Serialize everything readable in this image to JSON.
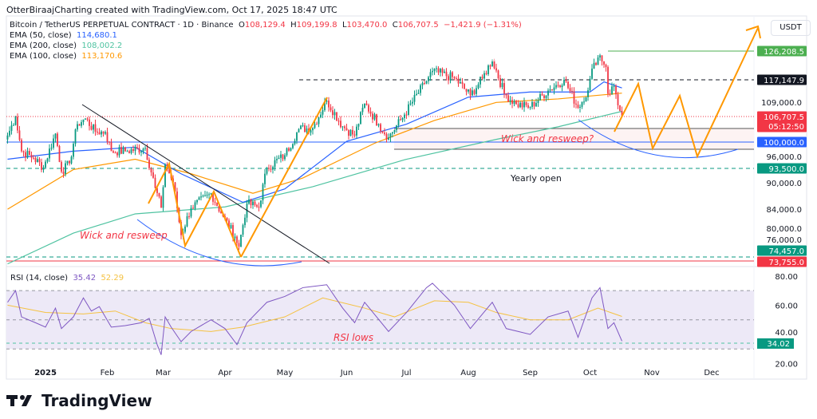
{
  "credit": "OtterBiraajCharting created with TradingView.com, Oct 17, 2025 18:47 UTC",
  "header": {
    "symbol": "Bitcoin / TetherUS PERPETUAL CONTRACT · 1D · Binance",
    "o_label": "O",
    "o": "108,129.4",
    "h_label": "H",
    "h": "109,199.8",
    "l_label": "L",
    "l": "103,470.0",
    "c_label": "C",
    "c": "106,707.5",
    "change": "−1,421.9 (−1.31%)"
  },
  "indicators": [
    {
      "label": "EMA (50, close)",
      "value": "114,680.1",
      "color": "#2962ff"
    },
    {
      "label": "EMA (200, close)",
      "value": "108,002.2",
      "color": "#4fc3a1"
    },
    {
      "label": "EMA (100, close)",
      "value": "113,170.6",
      "color": "#ff9800"
    }
  ],
  "rsi_legend": {
    "label": "RSI (14, close)",
    "value": "35.42",
    "ma": "52.29"
  },
  "currency": "USDT",
  "annotations": {
    "wick_left": "Wick and resweep",
    "wick_right": "Wick and resweep?",
    "yearly_open": "Yearly open",
    "rsi_lows": "RSI lows"
  },
  "brand": "TradingView",
  "chart_data": [
    {
      "type": "candlestick",
      "scale": "log",
      "ylim": [
        72000,
        135000
      ],
      "x_ticks": [
        "2025",
        "Feb",
        "Mar",
        "Apr",
        "May",
        "Jun",
        "Jul",
        "Aug",
        "Sep",
        "Oct",
        "Nov",
        "Dec"
      ],
      "y_ticks": [
        "109,000.0",
        "96,000.0",
        "90,000.0",
        "84,000.0",
        "80,000.0",
        "76,000.0"
      ],
      "price_labels": [
        {
          "value": "126,208.5",
          "color": "#4caf50"
        },
        {
          "value": "117,147.9",
          "color": "#131722"
        },
        {
          "value": "106,707.5",
          "sub": "05:12:50",
          "color": "#f23645"
        },
        {
          "value": "100,000.0",
          "color": "#2962ff"
        },
        {
          "value": "93,500.0",
          "color": "#089981"
        },
        {
          "value": "74,457.0",
          "color": "#089981"
        },
        {
          "value": "73,755.0",
          "color": "#f23645"
        }
      ],
      "colors": {
        "up": "#089981",
        "down": "#f23645"
      },
      "close": [
        [
          "2024-12-13",
          101500
        ],
        [
          "2024-12-17",
          106500
        ],
        [
          "2024-12-20",
          97500
        ],
        [
          "2024-12-26",
          95800
        ],
        [
          "2024-12-31",
          93500
        ],
        [
          "2025-01-06",
          102000
        ],
        [
          "2025-01-09",
          92500
        ],
        [
          "2025-01-13",
          94500
        ],
        [
          "2025-01-17",
          104500
        ],
        [
          "2025-01-21",
          106000
        ],
        [
          "2025-01-26",
          102500
        ],
        [
          "2025-01-31",
          102400
        ],
        [
          "2025-02-03",
          97500
        ],
        [
          "2025-02-10",
          97500
        ],
        [
          "2025-02-20",
          98300
        ],
        [
          "2025-02-25",
          88700
        ],
        [
          "2025-02-28",
          84300
        ],
        [
          "2025-03-02",
          94200
        ],
        [
          "2025-03-06",
          90000
        ],
        [
          "2025-03-10",
          78600
        ],
        [
          "2025-03-15",
          84300
        ],
        [
          "2025-03-25",
          87500
        ],
        [
          "2025-03-31",
          82500
        ],
        [
          "2025-04-06",
          78300
        ],
        [
          "2025-04-08",
          76300
        ],
        [
          "2025-04-12",
          85200
        ],
        [
          "2025-04-18",
          84500
        ],
        [
          "2025-04-22",
          93400
        ],
        [
          "2025-05-01",
          96500
        ],
        [
          "2025-05-08",
          103200
        ],
        [
          "2025-05-15",
          103500
        ],
        [
          "2025-05-22",
          111000
        ],
        [
          "2025-05-30",
          103900
        ],
        [
          "2025-06-05",
          101500
        ],
        [
          "2025-06-10",
          110200
        ],
        [
          "2025-06-17",
          104500
        ],
        [
          "2025-06-22",
          101000
        ],
        [
          "2025-06-30",
          107100
        ],
        [
          "2025-07-10",
          116000
        ],
        [
          "2025-07-14",
          119800
        ],
        [
          "2025-07-25",
          117600
        ],
        [
          "2025-08-02",
          112500
        ],
        [
          "2025-08-08",
          117500
        ],
        [
          "2025-08-13",
          123300
        ],
        [
          "2025-08-19",
          113000
        ],
        [
          "2025-08-25",
          110000
        ],
        [
          "2025-09-01",
          109200
        ],
        [
          "2025-09-10",
          113900
        ],
        [
          "2025-09-18",
          117100
        ],
        [
          "2025-09-25",
          109000
        ],
        [
          "2025-09-30",
          114000
        ],
        [
          "2025-10-03",
          122300
        ],
        [
          "2025-10-06",
          124700
        ],
        [
          "2025-10-09",
          121000
        ],
        [
          "2025-10-10",
          113000
        ],
        [
          "2025-10-13",
          115200
        ],
        [
          "2025-10-16",
          108100
        ],
        [
          "2025-10-17",
          106707.5
        ]
      ],
      "ema50": [
        [
          "2024-12-13",
          95500
        ],
        [
          "2025-01-15",
          97500
        ],
        [
          "2025-02-15",
          98500
        ],
        [
          "2025-03-10",
          92000
        ],
        [
          "2025-04-10",
          85500
        ],
        [
          "2025-05-01",
          88500
        ],
        [
          "2025-06-01",
          100000
        ],
        [
          "2025-07-01",
          104500
        ],
        [
          "2025-08-01",
          112000
        ],
        [
          "2025-09-01",
          113500
        ],
        [
          "2025-10-01",
          113500
        ],
        [
          "2025-10-08",
          116500
        ],
        [
          "2025-10-17",
          114680
        ]
      ],
      "ema100": [
        [
          "2024-12-13",
          84000
        ],
        [
          "2025-01-15",
          93000
        ],
        [
          "2025-02-15",
          95500
        ],
        [
          "2025-03-15",
          92000
        ],
        [
          "2025-04-15",
          87500
        ],
        [
          "2025-05-10",
          91000
        ],
        [
          "2025-06-15",
          99500
        ],
        [
          "2025-07-15",
          105500
        ],
        [
          "2025-08-15",
          110500
        ],
        [
          "2025-09-15",
          111500
        ],
        [
          "2025-10-17",
          113170
        ]
      ],
      "ema200": [
        [
          "2024-12-13",
          73000
        ],
        [
          "2025-01-15",
          79000
        ],
        [
          "2025-02-15",
          83000
        ],
        [
          "2025-04-01",
          84500
        ],
        [
          "2025-05-15",
          89000
        ],
        [
          "2025-07-01",
          95500
        ],
        [
          "2025-08-15",
          100500
        ],
        [
          "2025-09-15",
          103800
        ],
        [
          "2025-10-17",
          108002
        ]
      ]
    },
    {
      "type": "line",
      "title": "RSI (14, close)",
      "ylim": [
        15,
        82
      ],
      "y_ticks": [
        "80.00",
        "60.00",
        "40.00",
        "20.00"
      ],
      "bands": [
        70,
        50,
        30
      ],
      "level_label": "34.02",
      "rsi": [
        [
          "2024-12-13",
          62
        ],
        [
          "2024-12-17",
          70
        ],
        [
          "2024-12-20",
          52
        ],
        [
          "2024-12-27",
          48
        ],
        [
          "2025-01-01",
          45
        ],
        [
          "2025-01-06",
          58
        ],
        [
          "2025-01-09",
          44
        ],
        [
          "2025-01-15",
          52
        ],
        [
          "2025-01-20",
          65
        ],
        [
          "2025-01-24",
          56
        ],
        [
          "2025-01-28",
          59
        ],
        [
          "2025-02-03",
          45
        ],
        [
          "2025-02-10",
          46
        ],
        [
          "2025-02-18",
          48
        ],
        [
          "2025-02-22",
          51
        ],
        [
          "2025-02-26",
          33
        ],
        [
          "2025-02-28",
          26
        ],
        [
          "2025-03-02",
          52
        ],
        [
          "2025-03-05",
          45
        ],
        [
          "2025-03-10",
          35
        ],
        [
          "2025-03-15",
          42
        ],
        [
          "2025-03-25",
          50
        ],
        [
          "2025-04-01",
          44
        ],
        [
          "2025-04-07",
          33
        ],
        [
          "2025-04-12",
          48
        ],
        [
          "2025-04-22",
          62
        ],
        [
          "2025-05-01",
          66
        ],
        [
          "2025-05-10",
          72
        ],
        [
          "2025-05-22",
          74
        ],
        [
          "2025-05-30",
          58
        ],
        [
          "2025-06-05",
          48
        ],
        [
          "2025-06-10",
          62
        ],
        [
          "2025-06-22",
          42
        ],
        [
          "2025-07-01",
          55
        ],
        [
          "2025-07-11",
          72
        ],
        [
          "2025-07-14",
          75
        ],
        [
          "2025-07-25",
          60
        ],
        [
          "2025-08-02",
          44
        ],
        [
          "2025-08-13",
          62
        ],
        [
          "2025-08-20",
          44
        ],
        [
          "2025-09-01",
          40
        ],
        [
          "2025-09-10",
          52
        ],
        [
          "2025-09-20",
          56
        ],
        [
          "2025-09-25",
          38
        ],
        [
          "2025-10-02",
          65
        ],
        [
          "2025-10-06",
          72
        ],
        [
          "2025-10-10",
          44
        ],
        [
          "2025-10-13",
          48
        ],
        [
          "2025-10-17",
          35.42
        ]
      ],
      "rsi_ma": [
        [
          "2024-12-13",
          60
        ],
        [
          "2025-01-01",
          55
        ],
        [
          "2025-01-20",
          54
        ],
        [
          "2025-02-05",
          56
        ],
        [
          "2025-02-20",
          48
        ],
        [
          "2025-03-05",
          44
        ],
        [
          "2025-03-25",
          42
        ],
        [
          "2025-04-10",
          45
        ],
        [
          "2025-05-01",
          52
        ],
        [
          "2025-05-20",
          65
        ],
        [
          "2025-06-10",
          58
        ],
        [
          "2025-06-25",
          52
        ],
        [
          "2025-07-15",
          63
        ],
        [
          "2025-08-01",
          62
        ],
        [
          "2025-08-15",
          55
        ],
        [
          "2025-09-01",
          50
        ],
        [
          "2025-09-20",
          50
        ],
        [
          "2025-10-05",
          58
        ],
        [
          "2025-10-17",
          52.29
        ]
      ]
    }
  ]
}
